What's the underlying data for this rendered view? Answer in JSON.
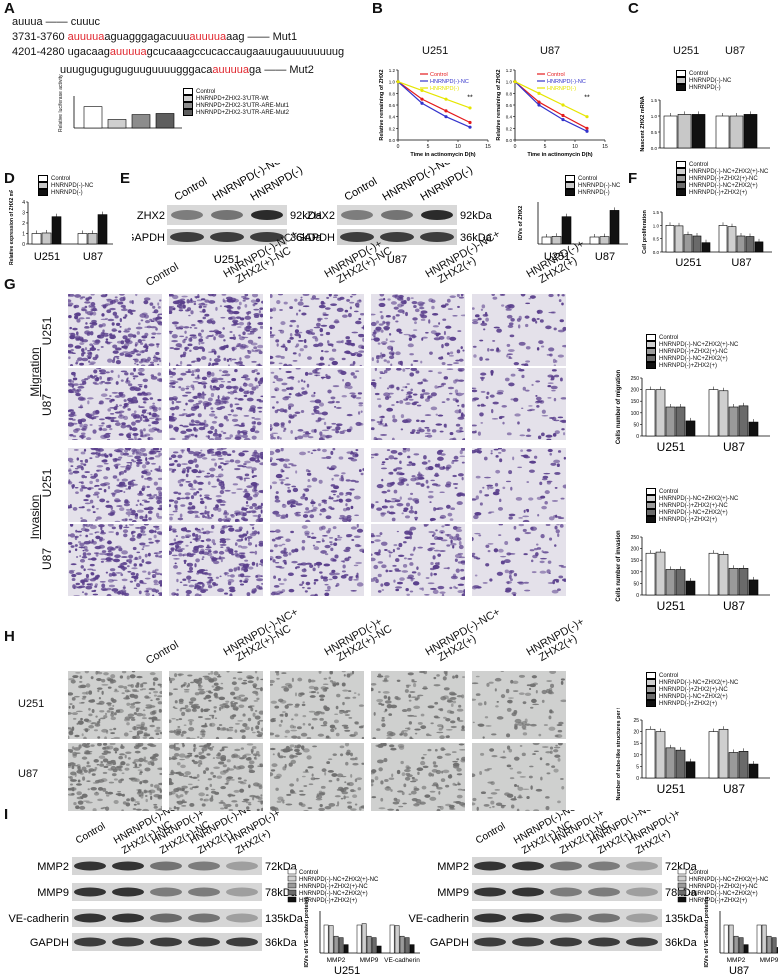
{
  "panels": {
    "A": "A",
    "B": "B",
    "C": "C",
    "D": "D",
    "E": "E",
    "F": "F",
    "G": "G",
    "H": "H",
    "I": "I"
  },
  "A": {
    "seq_top": "auuua —— cuuuc",
    "seq1_pos": "3731-3760",
    "seq1_a": "auuuua",
    "seq1_b": "aguagggagacuuu",
    "seq1_c": "auuuua",
    "seq1_d": "aag —— Mut1",
    "seq2_pos": "4201-4280",
    "seq2_a": "ugacaag",
    "seq2_b": "auuuua",
    "seq2_c": "gcucaaagccucaccaugaauugauuuuuuuug",
    "seq3_a": "uuuguguguguguuguuuugggaca",
    "seq3_b": "auuuua",
    "seq3_c": "ga —— Mut2",
    "ylabel": "Relative luciferase activity",
    "legend": [
      "Control",
      "HNRNPD+ZHX2-3'UTR-Wt",
      "HNRNPD+ZHX2-3'UTR-ARE-Mut1",
      "HNRNPD+ZHX2-3'UTR-ARE-Mut2"
    ],
    "colors": [
      "#ffffff",
      "#cfcfcf",
      "#8c8c8c",
      "#5e5e5e"
    ]
  },
  "B": {
    "cell1": "U251",
    "cell2": "U87",
    "ylabel": "Relative remaining of ZHX2",
    "xlabel": "Time in actinomycin D(h)",
    "legend": [
      "Control",
      "HNRNPD(-)-NC",
      "HNRNPD(-)"
    ],
    "colors": [
      "#e41a1c",
      "#3333cc",
      "#e6e600"
    ],
    "xticks": [
      "0",
      "5",
      "10",
      "15"
    ],
    "yticks": [
      "0.0",
      "0.2",
      "0.4",
      "0.6",
      "0.8",
      "1.0",
      "1.2"
    ],
    "sig": "**"
  },
  "C": {
    "cell1": "U251",
    "cell2": "U87",
    "ylabel": "Nascent ZHX2 mRNA",
    "legend": [
      "Control",
      "HNRNPD(-)-NC",
      "HNRNPD(-)"
    ],
    "yticks": [
      "0.0",
      "0.5",
      "1.0",
      "1.5"
    ]
  },
  "D": {
    "ylabel": "Relative expression of ZHX2 mRNA",
    "legend": [
      "Control",
      "HNRNPD(-)-NC",
      "HNRNPD(-)"
    ],
    "cats": [
      "U251",
      "U87"
    ],
    "yticks": [
      "0",
      "1",
      "2",
      "3",
      "4"
    ]
  },
  "E": {
    "lanes": [
      "Control",
      "HNRNPD(-)-NC",
      "HNRNPD(-)"
    ],
    "row1": "ZHX2",
    "row2": "GAPDH",
    "kda1": "92kDa",
    "kda2": "36kDa",
    "cell1": "U251",
    "cell2": "U87",
    "ylabel": "IDVs of ZHX2",
    "legend": [
      "Control",
      "HNRNPD(-)-NC",
      "HNRNPD(-)"
    ],
    "cats": [
      "U251",
      "U87"
    ]
  },
  "F": {
    "ylabel": "Cell proliferation",
    "legend": [
      "Control",
      "HNRNPD(-)-NC+ZHX2(+)-NC",
      "HNRNPD(-)+ZHX2(+)-NC",
      "HNRNPD(-)-NC+ZHX2(+)",
      "HNRNPD(-)+ZHX2(+)"
    ],
    "cats": [
      "U251",
      "U87"
    ],
    "yticks": [
      "0.0",
      "0.5",
      "1.0",
      "1.5"
    ]
  },
  "G": {
    "cols": [
      "Control",
      "HNRNPD(-)-NC+ ZHX2(+)-NC",
      "HNRNPD(-)+ ZHX2(+)-NC",
      "HNRNPD(-)-NC+ ZHX2(+)",
      "HNRNPD(-)+ ZHX2(+)"
    ],
    "migration": "Migration",
    "invasion": "Invasion",
    "rows": [
      "U251",
      "U87",
      "U251",
      "U87"
    ],
    "ylabel1": "Cells number of migration",
    "ylabel2": "Cells number of invasion",
    "legend": [
      "Control",
      "HNRNPD(-)-NC+ZHX2(+)-NC",
      "HNRNPD(-)+ZHX2(+)-NC",
      "HNRNPD(-)-NC+ZHX2(+)",
      "HNRNPD(-)+ZHX2(+)"
    ],
    "cats": [
      "U251",
      "U87"
    ],
    "yticks": [
      "0",
      "50",
      "100",
      "150",
      "200",
      "250"
    ]
  },
  "H": {
    "cols": [
      "Control",
      "HNRNPD(-)-NC+ ZHX2(+)-NC",
      "HNRNPD(-)+ ZHX2(+)-NC",
      "HNRNPD(-)-NC+ ZHX2(+)",
      "HNRNPD(-)+ ZHX2(+)"
    ],
    "rows": [
      "U251",
      "U87"
    ],
    "ylabel": "Number of tube-like structures per field",
    "legend": [
      "Control",
      "HNRNPD(-)-NC+ZHX2(+)-NC",
      "HNRNPD(-)+ZHX2(+)-NC",
      "HNRNPD(-)-NC+ZHX2(+)",
      "HNRNPD(-)+ZHX2(+)"
    ],
    "cats": [
      "U251",
      "U87"
    ],
    "yticks": [
      "0",
      "5",
      "10",
      "15",
      "20",
      "25"
    ]
  },
  "I": {
    "lanes": [
      "Control",
      "HNRNPD(-)-NC+ ZHX2(+)-NC",
      "HNRNPD(-)+ ZHX2(+)-NC",
      "HNRNPD(-)-NC+ ZHX2(+)",
      "HNRNPD(-)+ ZHX2(+)"
    ],
    "rows": [
      "MMP2",
      "MMP9",
      "VE-cadherin",
      "GAPDH"
    ],
    "kdas": [
      "72kDa",
      "78kDa",
      "135kDa",
      "36kDa"
    ],
    "cell1": "U251",
    "cell2": "U87",
    "ylabel": "IDVs of VE-related proteins",
    "legend": [
      "Control",
      "HNRNPD(-)-NC+ZHX2(+)-NC",
      "HNRNPD(-)+ZHX2(+)-NC",
      "HNRNPD(-)-NC+ZHX2(+)",
      "HNRNPD(-)+ZHX2(+)"
    ],
    "cats": [
      "MMP2",
      "MMP9",
      "VE-cadherin"
    ]
  },
  "chart_data": [
    {
      "id": "A",
      "type": "bar",
      "categories": [
        "Control",
        "Wt",
        "Mut1",
        "Mut2"
      ],
      "values": [
        1.0,
        0.4,
        0.63,
        0.68
      ],
      "ylim": [
        0,
        1.5
      ]
    },
    {
      "id": "B-U251",
      "type": "line",
      "x": [
        0,
        4,
        8,
        12
      ],
      "series": [
        {
          "name": "Control",
          "values": [
            1.0,
            0.7,
            0.5,
            0.3
          ]
        },
        {
          "name": "HNRNPD(-)-NC",
          "values": [
            1.0,
            0.63,
            0.4,
            0.22
          ]
        },
        {
          "name": "HNRNPD(-)",
          "values": [
            1.0,
            0.85,
            0.7,
            0.55
          ]
        }
      ],
      "ylim": [
        0,
        1.2
      ],
      "xlim": [
        0,
        15
      ]
    },
    {
      "id": "B-U87",
      "type": "line",
      "x": [
        0,
        4,
        8,
        12
      ],
      "series": [
        {
          "name": "Control",
          "values": [
            1.0,
            0.65,
            0.42,
            0.2
          ]
        },
        {
          "name": "HNRNPD(-)-NC",
          "values": [
            1.0,
            0.6,
            0.35,
            0.15
          ]
        },
        {
          "name": "HNRNPD(-)",
          "values": [
            1.0,
            0.8,
            0.6,
            0.4
          ]
        }
      ],
      "ylim": [
        0,
        1.2
      ],
      "xlim": [
        0,
        15
      ]
    },
    {
      "id": "C",
      "type": "bar",
      "categories": [
        "U251",
        "U87"
      ],
      "series": [
        {
          "name": "Control",
          "values": [
            1.0,
            1.0
          ]
        },
        {
          "name": "HNRNPD(-)-NC",
          "values": [
            1.05,
            1.0
          ]
        },
        {
          "name": "HNRNPD(-)",
          "values": [
            1.05,
            1.05
          ]
        }
      ],
      "ylim": [
        0,
        1.5
      ]
    },
    {
      "id": "D",
      "type": "bar",
      "categories": [
        "U251",
        "U87"
      ],
      "series": [
        {
          "name": "Control",
          "values": [
            1.0,
            1.0
          ]
        },
        {
          "name": "HNRNPD(-)-NC",
          "values": [
            1.05,
            1.0
          ]
        },
        {
          "name": "HNRNPD(-)",
          "values": [
            2.6,
            2.8
          ]
        }
      ],
      "ylim": [
        0,
        4
      ]
    },
    {
      "id": "E",
      "type": "bar",
      "categories": [
        "U251",
        "U87"
      ],
      "series": [
        {
          "name": "Control",
          "values": [
            1.0,
            1.0
          ]
        },
        {
          "name": "HNRNPD(-)-NC",
          "values": [
            1.1,
            1.05
          ]
        },
        {
          "name": "HNRNPD(-)",
          "values": [
            3.9,
            4.8
          ]
        }
      ],
      "ylim": [
        0,
        6
      ]
    },
    {
      "id": "F",
      "type": "bar",
      "categories": [
        "U251",
        "U87"
      ],
      "series": [
        {
          "name": "Control",
          "values": [
            1.0,
            1.0
          ]
        },
        {
          "name": "HNRNPD(-)-NC+ZHX2(+)-NC",
          "values": [
            0.98,
            0.95
          ]
        },
        {
          "name": "HNRNPD(-)+ZHX2(+)-NC",
          "values": [
            0.65,
            0.6
          ]
        },
        {
          "name": "HNRNPD(-)-NC+ZHX2(+)",
          "values": [
            0.6,
            0.58
          ]
        },
        {
          "name": "HNRNPD(-)+ZHX2(+)",
          "values": [
            0.35,
            0.38
          ]
        }
      ],
      "ylim": [
        0,
        1.5
      ]
    },
    {
      "id": "G-migration",
      "type": "bar",
      "categories": [
        "U251",
        "U87"
      ],
      "series": [
        {
          "name": "Control",
          "values": [
            200,
            200
          ]
        },
        {
          "name": "HNRNPD(-)-NC+ZHX2(+)-NC",
          "values": [
            200,
            195
          ]
        },
        {
          "name": "HNRNPD(-)+ZHX2(+)-NC",
          "values": [
            125,
            125
          ]
        },
        {
          "name": "HNRNPD(-)-NC+ZHX2(+)",
          "values": [
            125,
            130
          ]
        },
        {
          "name": "HNRNPD(-)+ZHX2(+)",
          "values": [
            65,
            60
          ]
        }
      ],
      "ylim": [
        0,
        250
      ]
    },
    {
      "id": "G-invasion",
      "type": "bar",
      "categories": [
        "U251",
        "U87"
      ],
      "series": [
        {
          "name": "Control",
          "values": [
            180,
            180
          ]
        },
        {
          "name": "HNRNPD(-)-NC+ZHX2(+)-NC",
          "values": [
            185,
            175
          ]
        },
        {
          "name": "HNRNPD(-)+ZHX2(+)-NC",
          "values": [
            110,
            115
          ]
        },
        {
          "name": "HNRNPD(-)-NC+ZHX2(+)",
          "values": [
            110,
            115
          ]
        },
        {
          "name": "HNRNPD(-)+ZHX2(+)",
          "values": [
            60,
            65
          ]
        }
      ],
      "ylim": [
        0,
        250
      ]
    },
    {
      "id": "H",
      "type": "bar",
      "categories": [
        "U251",
        "U87"
      ],
      "series": [
        {
          "name": "Control",
          "values": [
            21,
            20
          ]
        },
        {
          "name": "HNRNPD(-)-NC+ZHX2(+)-NC",
          "values": [
            20,
            21
          ]
        },
        {
          "name": "HNRNPD(-)+ZHX2(+)-NC",
          "values": [
            13,
            11
          ]
        },
        {
          "name": "HNRNPD(-)-NC+ZHX2(+)",
          "values": [
            12,
            11.5
          ]
        },
        {
          "name": "HNRNPD(-)+ZHX2(+)",
          "values": [
            7,
            6
          ]
        }
      ],
      "ylim": [
        0,
        25
      ]
    },
    {
      "id": "I-U251",
      "type": "bar",
      "categories": [
        "MMP2",
        "MMP9",
        "VE-cadherin"
      ],
      "series": [
        {
          "name": "Control",
          "values": [
            1.0,
            1.0,
            1.0
          ]
        },
        {
          "name": "HNRNPD(-)-NC+ZHX2(+)-NC",
          "values": [
            0.98,
            1.05,
            0.98
          ]
        },
        {
          "name": "HNRNPD(-)+ZHX2(+)-NC",
          "values": [
            0.6,
            0.6,
            0.6
          ]
        },
        {
          "name": "HNRNPD(-)-NC+ZHX2(+)",
          "values": [
            0.55,
            0.55,
            0.55
          ]
        },
        {
          "name": "HNRNPD(-)+ZHX2(+)",
          "values": [
            0.3,
            0.25,
            0.3
          ]
        }
      ],
      "ylim": [
        0,
        1.5
      ]
    },
    {
      "id": "I-U87",
      "type": "bar",
      "categories": [
        "MMP2",
        "MMP9",
        "VE-cadherin"
      ],
      "series": [
        {
          "name": "Control",
          "values": [
            1.0,
            1.0,
            1.0
          ]
        },
        {
          "name": "HNRNPD(-)-NC+ZHX2(+)-NC",
          "values": [
            1.0,
            1.0,
            1.0
          ]
        },
        {
          "name": "HNRNPD(-)+ZHX2(+)-NC",
          "values": [
            0.6,
            0.6,
            0.6
          ]
        },
        {
          "name": "HNRNPD(-)-NC+ZHX2(+)",
          "values": [
            0.55,
            0.55,
            0.55
          ]
        },
        {
          "name": "HNRNPD(-)+ZHX2(+)",
          "values": [
            0.3,
            0.2,
            0.3
          ]
        }
      ],
      "ylim": [
        0,
        1.5
      ]
    }
  ]
}
